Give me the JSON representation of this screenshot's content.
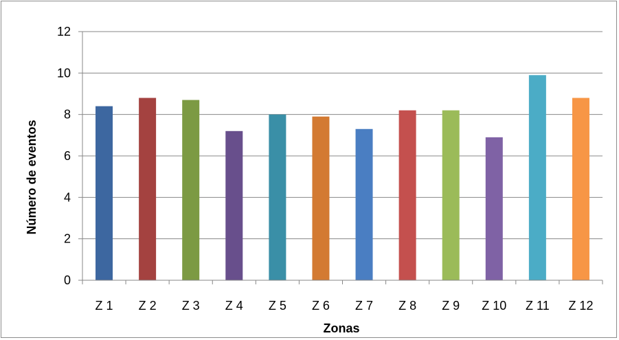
{
  "chart_data": {
    "type": "bar",
    "title": "",
    "xlabel": "Zonas",
    "ylabel": "Número de eventos",
    "ylim": [
      0,
      12
    ],
    "yticks": [
      "0",
      "2",
      "4",
      "6",
      "8",
      "10",
      "12"
    ],
    "grid": true,
    "legend": "none",
    "categories": [
      "Z 1",
      "Z 2",
      "Z 3",
      "Z 4",
      "Z 5",
      "Z 6",
      "Z 7",
      "Z 8",
      "Z 9",
      "Z 10",
      "Z 11",
      "Z 12"
    ],
    "values": [
      8.4,
      8.8,
      8.7,
      7.2,
      8.0,
      7.9,
      7.3,
      8.2,
      8.2,
      6.9,
      9.9,
      8.8
    ],
    "colors": [
      "#3d67a0",
      "#a44240",
      "#7c9a43",
      "#684f8c",
      "#3a8fa7",
      "#d37a32",
      "#4a7ec2",
      "#c4504e",
      "#9bbb59",
      "#7f62a5",
      "#4bacc6",
      "#f79646"
    ]
  }
}
